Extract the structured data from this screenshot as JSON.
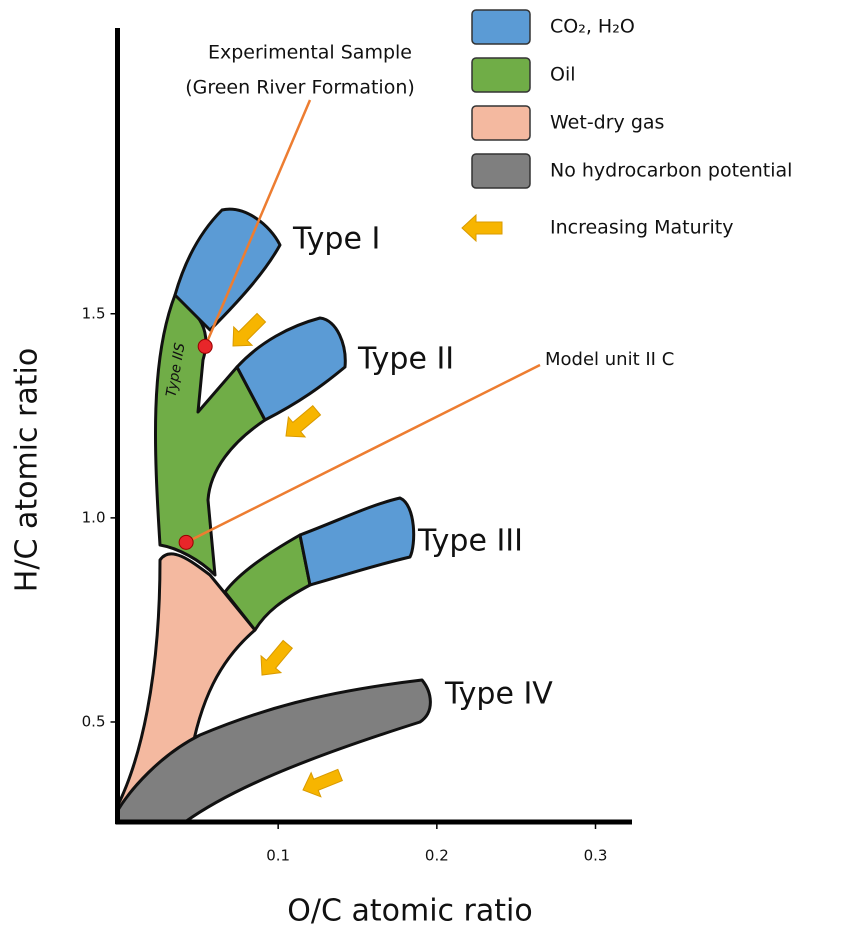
{
  "chart_data": {
    "type": "scatter",
    "x_label": "O/C atomic ratio",
    "y_label": "H/C atomic ratio",
    "xlim": [
      0,
      0.323
    ],
    "ylim": [
      0.255,
      2.2
    ],
    "xticks": [
      0.1,
      0.2,
      0.3
    ],
    "yticks": [
      0.5,
      {
        "value": 1,
        "label": "1.0"
      },
      1.5
    ],
    "points": {
      "x": [
        0.054,
        0.042
      ],
      "y": [
        1.42,
        0.94
      ],
      "color": "#e8262a"
    },
    "annotations": [
      "Experimental Sample",
      "(Green River Formation)",
      "Model unit II C"
    ],
    "region_labels": [
      "Type I",
      "Type II",
      "Type III",
      "Type IV",
      "Type IIS"
    ],
    "legend": [
      {
        "label": "CO₂, H₂O",
        "color": "#5b9bd5"
      },
      {
        "label": "Oil",
        "color": "#70ad47"
      },
      {
        "label": "Wet-dry gas",
        "color": "#f4b9a0"
      },
      {
        "label": "No hydrocarbon potential",
        "color": "#7f7f7f"
      }
    ],
    "maturity_label": "Increasing Maturity"
  }
}
